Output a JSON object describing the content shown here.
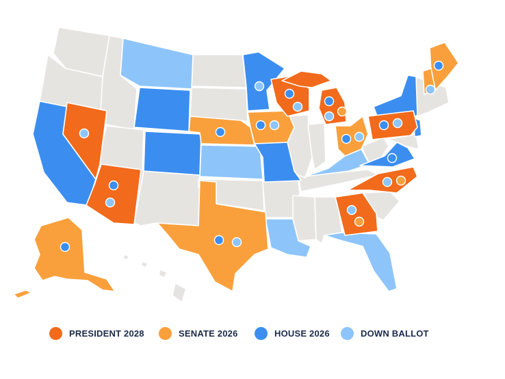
{
  "colors": {
    "president_2028": "#f26a1b",
    "senate_2026": "#f9a03c",
    "house_2026": "#3b8ef0",
    "down_ballot": "#8dc5fa",
    "neutral": "#e6e4e1",
    "marker_outline": "#ffffff"
  },
  "legend": [
    {
      "key": "president_2028",
      "label": "PRESIDENT 2028",
      "color": "#f26a1b"
    },
    {
      "key": "senate_2026",
      "label": "SENATE 2026",
      "color": "#f9a03c"
    },
    {
      "key": "house_2026",
      "label": "HOUSE 2026",
      "color": "#3b8ef0"
    },
    {
      "key": "down_ballot",
      "label": "DOWN BALLOT",
      "color": "#8dc5fa"
    }
  ],
  "states": {
    "president_2028": [
      "Nevada",
      "Arizona",
      "Wisconsin",
      "Michigan",
      "Pennsylvania",
      "Georgia",
      "North Carolina"
    ],
    "senate_2026": [
      "Alaska",
      "Texas",
      "Nebraska",
      "Iowa",
      "Ohio",
      "Maine",
      "New Hampshire"
    ],
    "house_2026": [
      "California",
      "Wyoming",
      "Colorado",
      "Minnesota",
      "Missouri",
      "New York",
      "Virginia",
      "New Jersey"
    ],
    "down_ballot": [
      "Montana",
      "Kansas",
      "Louisiana",
      "Kentucky",
      "Florida"
    ]
  },
  "markers": [
    {
      "state": "Nevada",
      "races": [
        "down_ballot"
      ]
    },
    {
      "state": "Arizona",
      "races": [
        "house_2026",
        "down_ballot"
      ]
    },
    {
      "state": "Alaska",
      "races": [
        "house_2026"
      ]
    },
    {
      "state": "Texas",
      "races": [
        "house_2026",
        "down_ballot"
      ]
    },
    {
      "state": "Nebraska",
      "races": [
        "house_2026"
      ]
    },
    {
      "state": "Iowa",
      "races": [
        "house_2026",
        "down_ballot"
      ]
    },
    {
      "state": "Minnesota",
      "races": [
        "down_ballot"
      ]
    },
    {
      "state": "Wisconsin",
      "races": [
        "house_2026",
        "down_ballot"
      ]
    },
    {
      "state": "Michigan",
      "races": [
        "house_2026",
        "senate_2026",
        "down_ballot"
      ]
    },
    {
      "state": "Ohio",
      "races": [
        "house_2026",
        "down_ballot"
      ]
    },
    {
      "state": "Pennsylvania",
      "races": [
        "house_2026",
        "down_ballot"
      ]
    },
    {
      "state": "Virginia",
      "races": [
        "house_2026"
      ]
    },
    {
      "state": "North Carolina",
      "races": [
        "down_ballot",
        "senate_2026"
      ]
    },
    {
      "state": "Georgia",
      "races": [
        "down_ballot",
        "senate_2026"
      ]
    },
    {
      "state": "Maine",
      "races": [
        "house_2026"
      ]
    },
    {
      "state": "New Hampshire",
      "races": [
        "down_ballot"
      ]
    }
  ]
}
